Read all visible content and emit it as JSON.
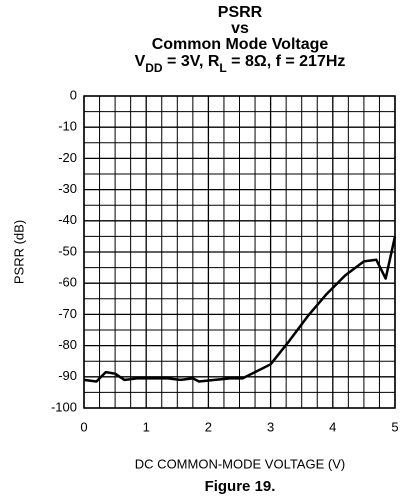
{
  "chart_data": {
    "type": "line",
    "title_lines": [
      "PSRR",
      "vs",
      "Common Mode Voltage"
    ],
    "subtitle_parts": [
      {
        "text": "V",
        "sub": "DD"
      },
      {
        "text": " = 3V, R",
        "sub": "L"
      },
      {
        "text": " = 8Ω, f = 217Hz"
      }
    ],
    "x_label": "DC COMMON-MODE VOLTAGE (V)",
    "y_label": "PSRR (dB)",
    "caption": "Figure 19.",
    "x": [
      0,
      0.2,
      0.35,
      0.5,
      0.65,
      0.85,
      1.1,
      1.35,
      1.55,
      1.75,
      1.85,
      2.1,
      2.35,
      2.55,
      2.75,
      3.0,
      3.3,
      3.6,
      3.9,
      4.2,
      4.5,
      4.7,
      4.85,
      5.0
    ],
    "series": [
      {
        "color": "#000000",
        "values": [
          -91,
          -91.5,
          -88.5,
          -89,
          -91,
          -90.5,
          -90.5,
          -90.5,
          -91,
          -90.5,
          -91.5,
          -91,
          -90.5,
          -90.5,
          -88.5,
          -86,
          -78.5,
          -70.5,
          -63.5,
          -57.5,
          -53,
          -52.5,
          -58.5,
          -45
        ]
      }
    ],
    "xlim": [
      0,
      5
    ],
    "xticks": [
      0,
      1,
      2,
      3,
      4,
      5
    ],
    "ylim": [
      -100,
      0
    ],
    "yticks": [
      0,
      -10,
      -20,
      -30,
      -40,
      -50,
      -60,
      -70,
      -80,
      -90,
      -100
    ],
    "grid": true,
    "grid_subdivisions": {
      "x": 4,
      "y": 2
    }
  }
}
